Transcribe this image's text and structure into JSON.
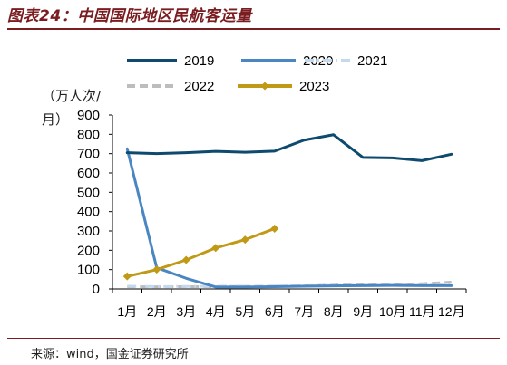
{
  "figure_title": "图表24：中国国际地区民航客运量",
  "source": "来源：wind，国金证券研究所",
  "chart_data": {
    "type": "line",
    "ylabel": "（万人次/月）",
    "ylim": [
      0,
      900
    ],
    "yticks": [
      0,
      100,
      200,
      300,
      400,
      500,
      600,
      700,
      800,
      900
    ],
    "categories": [
      "1月",
      "2月",
      "3月",
      "4月",
      "5月",
      "6月",
      "7月",
      "8月",
      "9月",
      "10月",
      "11月",
      "12月"
    ],
    "legend_position": "top",
    "series": [
      {
        "name": "2019",
        "color": "#0e4a6e",
        "style": "solid",
        "marker": "none",
        "values": [
          705,
          700,
          705,
          712,
          707,
          713,
          770,
          798,
          680,
          678,
          664,
          697
        ]
      },
      {
        "name": "2020",
        "color": "#4a86c2",
        "style": "solid",
        "marker": "none",
        "values": [
          725,
          110,
          55,
          10,
          10,
          12,
          14,
          16,
          17,
          18,
          17,
          17
        ]
      },
      {
        "name": "2021",
        "color": "#c5d9ee",
        "style": "dashdot",
        "marker": "none",
        "values": [
          14,
          12,
          13,
          14,
          14,
          15,
          16,
          18,
          19,
          20,
          20,
          20
        ]
      },
      {
        "name": "2022",
        "color": "#bdbdbd",
        "style": "dashed",
        "marker": "none",
        "values": [
          12,
          11,
          12,
          12,
          13,
          14,
          16,
          20,
          22,
          24,
          27,
          35
        ]
      },
      {
        "name": "2023",
        "color": "#c09a17",
        "style": "solid",
        "marker": "diamond",
        "values": [
          65,
          100,
          150,
          212,
          255,
          312,
          null,
          null,
          null,
          null,
          null,
          null
        ]
      }
    ]
  }
}
